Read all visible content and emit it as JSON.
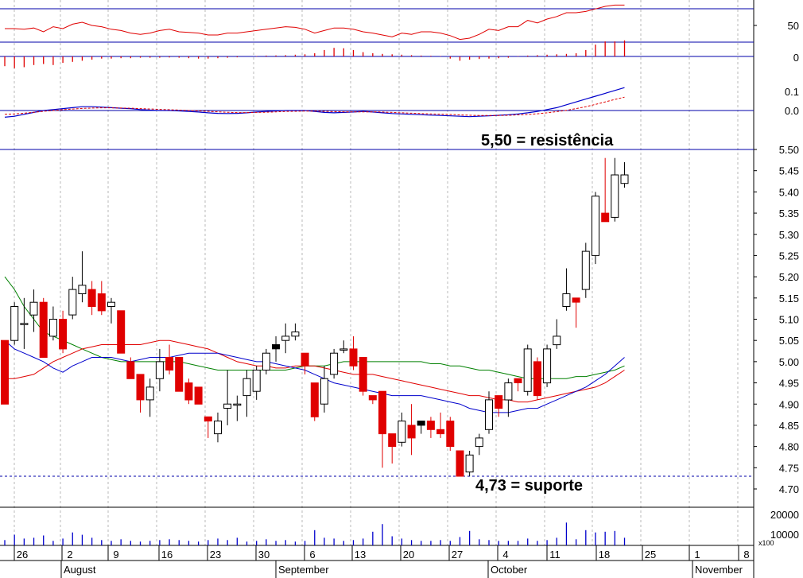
{
  "chart_data": {
    "type": "candlestick",
    "annotations": {
      "resistance": {
        "label": "5,50 = resistência",
        "value": 5.5
      },
      "support": {
        "label": "4,73 = suporte",
        "value": 4.73
      }
    },
    "price_axis": {
      "ticks": [
        "5.50",
        "5.45",
        "5.40",
        "5.35",
        "5.30",
        "5.25",
        "5.20",
        "5.15",
        "5.10",
        "5.05",
        "5.00",
        "4.95",
        "4.90",
        "4.85",
        "4.80",
        "4.75",
        "4.70"
      ],
      "range": [
        4.67,
        5.55
      ]
    },
    "rsi_axis": {
      "ticks": [
        "50"
      ],
      "range": [
        0,
        100
      ]
    },
    "hist_axis": {
      "ticks": [
        "0"
      ]
    },
    "macd_axis": {
      "ticks": [
        "0.1",
        "0.0"
      ],
      "range": [
        -0.05,
        0.25
      ]
    },
    "volume_axis": {
      "ticks": [
        "20000",
        "10000"
      ],
      "multiplier": "x100",
      "max": 24000
    },
    "x_axis": {
      "day_labels": [
        "26",
        "2",
        "9",
        "16",
        "23",
        "30",
        "6",
        "13",
        "20",
        "27",
        "4",
        "11",
        "18",
        "25",
        "1",
        "8"
      ],
      "month_labels": [
        "August",
        "September",
        "October",
        "November"
      ]
    },
    "candles": [
      [
        5.05,
        4.9,
        5.05,
        4.9
      ],
      [
        5.05,
        5.13,
        5.14,
        5.04
      ],
      [
        5.09,
        5.09,
        5.15,
        5.03
      ],
      [
        5.11,
        5.14,
        5.17,
        5.07
      ],
      [
        5.14,
        5.01,
        5.15,
        5.01
      ],
      [
        5.06,
        5.1,
        5.13,
        5.05
      ],
      [
        5.1,
        5.03,
        5.12,
        5.02
      ],
      [
        5.11,
        5.17,
        5.2,
        5.1
      ],
      [
        5.16,
        5.18,
        5.26,
        5.14
      ],
      [
        5.17,
        5.13,
        5.19,
        5.11
      ],
      [
        5.16,
        5.12,
        5.19,
        5.11
      ],
      [
        5.13,
        5.14,
        5.15,
        5.09
      ],
      [
        5.12,
        5.02,
        5.12,
        5.02
      ],
      [
        5.0,
        4.96,
        5.01,
        4.96
      ],
      [
        4.97,
        4.91,
        4.97,
        4.88
      ],
      [
        4.91,
        4.94,
        4.96,
        4.87
      ],
      [
        4.96,
        5.0,
        5.03,
        4.93
      ],
      [
        5.01,
        4.98,
        5.04,
        4.97
      ],
      [
        5.01,
        4.93,
        5.01,
        4.93
      ],
      [
        4.95,
        4.91,
        4.96,
        4.9
      ],
      [
        4.94,
        4.9,
        4.94,
        4.9
      ],
      [
        4.87,
        4.86,
        4.87,
        4.82
      ],
      [
        4.83,
        4.86,
        4.88,
        4.81
      ],
      [
        4.89,
        4.9,
        4.98,
        4.85
      ],
      [
        4.9,
        4.9,
        4.92,
        4.86
      ],
      [
        4.92,
        4.96,
        4.98,
        4.87
      ],
      [
        4.93,
        4.98,
        4.99,
        4.91
      ],
      [
        4.98,
        5.02,
        5.03,
        4.97
      ],
      [
        5.03,
        5.04,
        5.06,
        5.0
      ],
      [
        5.05,
        5.06,
        5.09,
        5.02
      ],
      [
        5.06,
        5.07,
        5.09,
        5.05
      ],
      [
        5.02,
        4.99,
        5.02,
        4.97
      ],
      [
        4.95,
        4.87,
        4.95,
        4.86
      ],
      [
        4.9,
        4.96,
        4.99,
        4.88
      ],
      [
        4.97,
        5.02,
        5.03,
        4.96
      ],
      [
        5.03,
        5.03,
        5.05,
        5.02
      ],
      [
        5.03,
        4.99,
        5.06,
        4.98
      ],
      [
        5.01,
        4.93,
        5.01,
        4.92
      ],
      [
        4.92,
        4.91,
        4.92,
        4.9
      ],
      [
        4.93,
        4.83,
        4.93,
        4.75
      ],
      [
        4.83,
        4.8,
        4.83,
        4.76
      ],
      [
        4.81,
        4.86,
        4.88,
        4.8
      ],
      [
        4.85,
        4.82,
        4.9,
        4.78
      ],
      [
        4.86,
        4.85,
        4.86,
        4.83
      ],
      [
        4.86,
        4.84,
        4.87,
        4.82
      ],
      [
        4.84,
        4.83,
        4.88,
        4.82
      ],
      [
        4.86,
        4.8,
        4.87,
        4.79
      ],
      [
        4.79,
        4.73,
        4.79,
        4.73
      ],
      [
        4.74,
        4.78,
        4.79,
        4.73
      ],
      [
        4.8,
        4.82,
        4.83,
        4.78
      ],
      [
        4.84,
        4.91,
        4.93,
        4.83
      ],
      [
        4.92,
        4.89,
        4.92,
        4.87
      ],
      [
        4.91,
        4.95,
        4.96,
        4.87
      ],
      [
        4.96,
        4.95,
        4.96,
        4.93
      ],
      [
        4.93,
        5.03,
        5.04,
        4.92
      ],
      [
        5.0,
        4.92,
        5.01,
        4.91
      ],
      [
        4.95,
        5.03,
        5.04,
        4.94
      ],
      [
        5.04,
        5.06,
        5.1,
        5.03
      ],
      [
        5.13,
        5.16,
        5.22,
        5.12
      ],
      [
        5.15,
        5.14,
        5.15,
        5.08
      ],
      [
        5.17,
        5.26,
        5.28,
        5.15
      ],
      [
        5.25,
        5.39,
        5.4,
        5.23
      ],
      [
        5.35,
        5.33,
        5.48,
        5.33
      ],
      [
        5.34,
        5.44,
        5.48,
        5.33
      ],
      [
        5.42,
        5.44,
        5.47,
        5.41
      ]
    ],
    "black_candle_indices": [
      28,
      43
    ],
    "ma_series": [
      {
        "color": "#008000",
        "values": [
          5.2,
          5.17,
          5.13,
          5.1,
          5.07,
          5.06,
          5.05,
          5.04,
          5.03,
          5.02,
          5.01,
          5.005,
          5.0,
          5.0,
          5.0,
          5.0,
          5.0,
          5.0,
          5.0,
          4.995,
          4.99,
          4.985,
          4.98,
          4.98,
          4.98,
          4.98,
          4.98,
          4.98,
          4.98,
          4.98,
          4.985,
          4.99,
          4.99,
          4.99,
          4.995,
          5.0,
          5.0,
          5.0,
          5.0,
          5.0,
          5.0,
          5.0,
          5.0,
          5.0,
          4.995,
          4.995,
          4.99,
          4.99,
          4.985,
          4.98,
          4.98,
          4.975,
          4.97,
          4.965,
          4.96,
          4.96,
          4.96,
          4.96,
          4.96,
          4.965,
          4.965,
          4.97,
          4.975,
          4.98,
          4.99
        ]
      },
      {
        "color": "#e00000",
        "values": [
          4.96,
          4.96,
          4.965,
          4.97,
          4.985,
          5.0,
          5.01,
          5.02,
          5.03,
          5.035,
          5.04,
          5.04,
          5.04,
          5.04,
          5.04,
          5.045,
          5.05,
          5.05,
          5.045,
          5.04,
          5.035,
          5.03,
          5.02,
          5.01,
          5.0,
          4.995,
          4.99,
          4.99,
          4.985,
          4.985,
          4.99,
          4.99,
          4.99,
          4.985,
          4.98,
          4.975,
          4.97,
          4.97,
          4.97,
          4.965,
          4.96,
          4.955,
          4.95,
          4.945,
          4.94,
          4.935,
          4.93,
          4.925,
          4.92,
          4.92,
          4.915,
          4.91,
          4.91,
          4.905,
          4.905,
          4.91,
          4.915,
          4.92,
          4.925,
          4.93,
          4.935,
          4.94,
          4.95,
          4.965,
          4.98
        ]
      },
      {
        "color": "#0000cc",
        "values": [
          5.05,
          5.03,
          5.02,
          5.01,
          5.0,
          4.985,
          4.975,
          4.99,
          5.0,
          5.01,
          5.01,
          5.01,
          5.005,
          5.0,
          5.005,
          5.01,
          5.01,
          5.01,
          5.015,
          5.02,
          5.02,
          5.02,
          5.02,
          5.015,
          5.01,
          5.005,
          5.0,
          5.0,
          4.995,
          4.99,
          4.985,
          4.98,
          4.97,
          4.96,
          4.95,
          4.945,
          4.94,
          4.935,
          4.93,
          4.925,
          4.92,
          4.92,
          4.92,
          4.92,
          4.915,
          4.91,
          4.905,
          4.9,
          4.89,
          4.885,
          4.88,
          4.88,
          4.88,
          4.885,
          4.89,
          4.89,
          4.9,
          4.91,
          4.92,
          4.93,
          4.94,
          4.955,
          4.97,
          4.99,
          5.01
        ]
      }
    ],
    "rsi": [
      45,
      45,
      44,
      46,
      40,
      48,
      45,
      52,
      55,
      50,
      48,
      44,
      42,
      38,
      36,
      38,
      42,
      44,
      40,
      39,
      38,
      35,
      35,
      38,
      38,
      40,
      42,
      44,
      46,
      48,
      47,
      44,
      38,
      42,
      46,
      46,
      44,
      40,
      38,
      35,
      32,
      38,
      36,
      40,
      40,
      38,
      34,
      28,
      30,
      36,
      44,
      42,
      48,
      48,
      58,
      54,
      60,
      64,
      70,
      70,
      72,
      76,
      80,
      82,
      82
    ],
    "macd_hist": [
      -0.45,
      -0.55,
      -0.5,
      -0.4,
      -0.35,
      -0.4,
      -0.3,
      -0.25,
      -0.2,
      -0.15,
      -0.1,
      -0.1,
      -0.08,
      -0.08,
      -0.06,
      -0.06,
      -0.06,
      -0.05,
      -0.06,
      -0.08,
      -0.1,
      -0.1,
      -0.08,
      -0.06,
      -0.04,
      0,
      0.02,
      0.04,
      0.05,
      0.06,
      0.08,
      0.1,
      0.15,
      0.3,
      0.4,
      0.38,
      0.3,
      0.2,
      0.15,
      0.12,
      0.1,
      0.08,
      0.06,
      0.04,
      0.03,
      0.02,
      -0.1,
      -0.2,
      -0.15,
      -0.12,
      -0.1,
      -0.08,
      -0.06,
      0.02,
      0.04,
      0.06,
      0.08,
      0.1,
      0.12,
      0.15,
      0.3,
      0.55,
      0.7,
      0.7,
      0.75
    ],
    "macd": [
      -0.035,
      -0.03,
      -0.02,
      -0.01,
      0.0,
      0.005,
      0.01,
      0.015,
      0.02,
      0.02,
      0.018,
      0.015,
      0.012,
      0.01,
      0.005,
      0.002,
      0.0,
      0.0,
      -0.002,
      -0.005,
      -0.008,
      -0.012,
      -0.015,
      -0.016,
      -0.015,
      -0.012,
      -0.008,
      -0.005,
      -0.002,
      0.0,
      0.0,
      0.0,
      -0.005,
      -0.01,
      -0.012,
      -0.01,
      -0.008,
      -0.005,
      -0.008,
      -0.012,
      -0.016,
      -0.018,
      -0.02,
      -0.022,
      -0.024,
      -0.026,
      -0.028,
      -0.03,
      -0.032,
      -0.03,
      -0.028,
      -0.025,
      -0.022,
      -0.018,
      -0.012,
      -0.005,
      0.005,
      0.015,
      0.03,
      0.045,
      0.06,
      0.075,
      0.09,
      0.105,
      0.12
    ],
    "macd_signal": [
      -0.02,
      -0.018,
      -0.014,
      -0.009,
      -0.004,
      0.0,
      0.004,
      0.008,
      0.011,
      0.013,
      0.014,
      0.014,
      0.013,
      0.012,
      0.01,
      0.008,
      0.006,
      0.004,
      0.002,
      0.0,
      -0.002,
      -0.004,
      -0.007,
      -0.009,
      -0.011,
      -0.011,
      -0.01,
      -0.009,
      -0.007,
      -0.005,
      -0.004,
      -0.003,
      -0.003,
      -0.004,
      -0.006,
      -0.007,
      -0.007,
      -0.007,
      -0.007,
      -0.008,
      -0.01,
      -0.012,
      -0.014,
      -0.016,
      -0.018,
      -0.019,
      -0.021,
      -0.023,
      -0.025,
      -0.026,
      -0.026,
      -0.026,
      -0.025,
      -0.023,
      -0.021,
      -0.017,
      -0.012,
      -0.006,
      0.001,
      0.01,
      0.02,
      0.032,
      0.045,
      0.058,
      0.07
    ],
    "volume": [
      3500,
      7000,
      4500,
      5000,
      6500,
      3000,
      4500,
      8500,
      7000,
      5000,
      3500,
      3000,
      4000,
      3000,
      2500,
      3000,
      3500,
      4000,
      3500,
      3000,
      2500,
      3500,
      4500,
      3500,
      5000,
      2500,
      3000,
      4000,
      3000,
      3500,
      2500,
      3000,
      10000,
      5000,
      4500,
      3000,
      3500,
      4500,
      9000,
      14000,
      6000,
      4500,
      3500,
      3000,
      3000,
      3500,
      3000,
      5500,
      9500,
      4000,
      3500,
      3000,
      3000,
      3000,
      4500,
      3000,
      3500,
      5000,
      15000,
      4000,
      10000,
      8500,
      9000,
      9500,
      5000
    ]
  }
}
